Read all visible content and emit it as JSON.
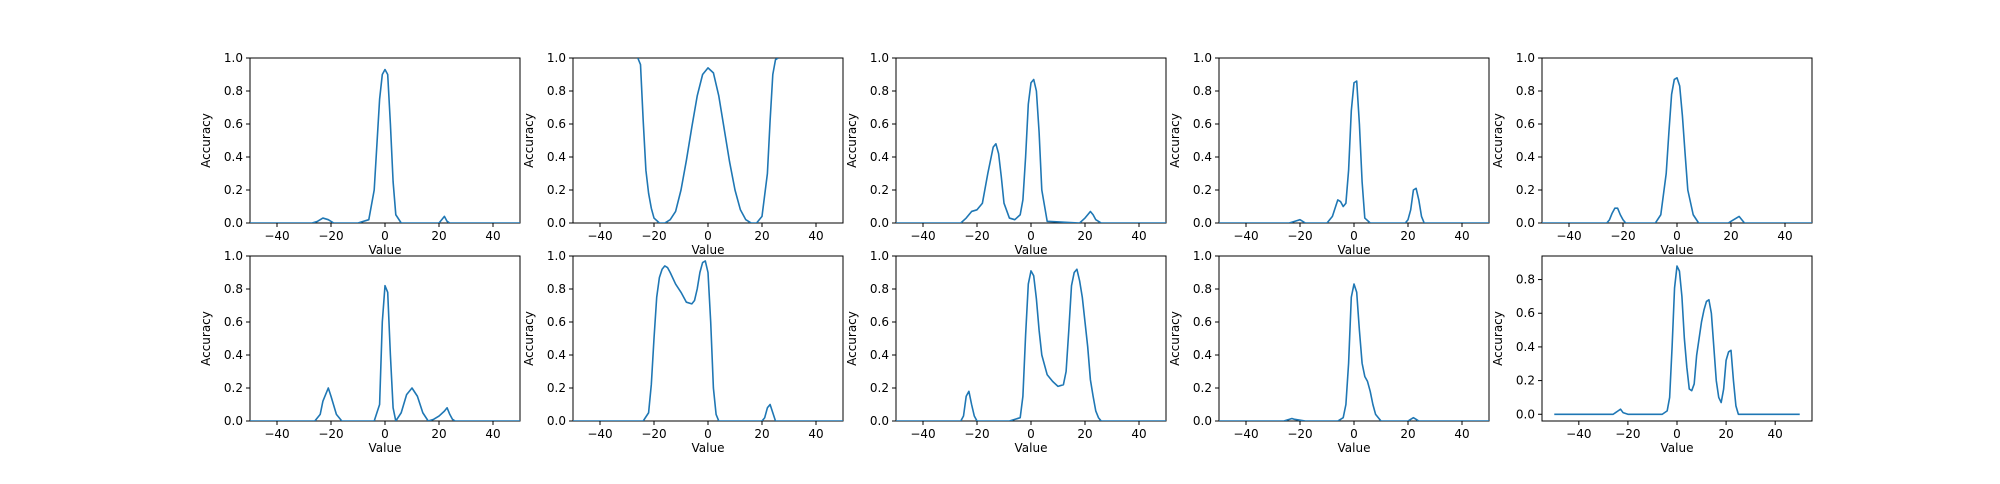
{
  "chart_data": [
    {
      "type": "line",
      "xlabel": "Value",
      "ylabel": "Accuracy",
      "xlim": [
        -50,
        50
      ],
      "ylim": [
        0,
        1.0
      ],
      "xticks": [
        -40,
        -20,
        0,
        20,
        40
      ],
      "xtick_labels": [
        "−40",
        "−20",
        "0",
        "20",
        "40"
      ],
      "yticks": [
        0,
        0.2,
        0.4,
        0.6,
        0.8,
        1.0
      ],
      "ytick_labels": [
        "0.0",
        "0.2",
        "0.4",
        "0.6",
        "0.8",
        "1.0"
      ],
      "color": "#1f77b4",
      "series": [
        {
          "x": [
            -50,
            -27,
            -25,
            -23,
            -21,
            -19,
            -10,
            -6,
            -4,
            -2,
            -1,
            0,
            1,
            2,
            3,
            4,
            6,
            20,
            21,
            22,
            23,
            24,
            50
          ],
          "y": [
            0,
            0,
            0.01,
            0.03,
            0.02,
            0,
            0,
            0.02,
            0.2,
            0.75,
            0.9,
            0.93,
            0.9,
            0.6,
            0.25,
            0.05,
            0,
            0,
            0.02,
            0.04,
            0.01,
            0,
            0
          ]
        }
      ]
    },
    {
      "type": "line",
      "xlabel": "Value",
      "ylabel": "Accuracy",
      "xlim": [
        -50,
        50
      ],
      "ylim": [
        0,
        1.0
      ],
      "xticks": [
        -40,
        -20,
        0,
        20,
        40
      ],
      "xtick_labels": [
        "−40",
        "−20",
        "0",
        "20",
        "40"
      ],
      "yticks": [
        0,
        0.2,
        0.4,
        0.6,
        0.8,
        1.0
      ],
      "ytick_labels": [
        "0.0",
        "0.2",
        "0.4",
        "0.6",
        "0.8",
        "1.0"
      ],
      "color": "#1f77b4",
      "series": [
        {
          "x": [
            -26,
            -25,
            -24,
            -23,
            -22,
            -21,
            -20,
            -18,
            -16,
            -14,
            -12,
            -10,
            -8,
            -6,
            -4,
            -2,
            0,
            2,
            4,
            6,
            8,
            10,
            12,
            14,
            16,
            18,
            20,
            22,
            23,
            24,
            25,
            26
          ],
          "y": [
            1.0,
            0.96,
            0.62,
            0.32,
            0.18,
            0.09,
            0.03,
            0.0,
            0.0,
            0.02,
            0.07,
            0.2,
            0.38,
            0.58,
            0.77,
            0.9,
            0.94,
            0.91,
            0.77,
            0.57,
            0.37,
            0.2,
            0.08,
            0.02,
            0.0,
            0.0,
            0.04,
            0.3,
            0.62,
            0.9,
            0.99,
            1.0
          ]
        }
      ]
    },
    {
      "type": "line",
      "xlabel": "Value",
      "ylabel": "Accuracy",
      "xlim": [
        -50,
        50
      ],
      "ylim": [
        0,
        1.0
      ],
      "xticks": [
        -40,
        -20,
        0,
        20,
        40
      ],
      "xtick_labels": [
        "−40",
        "−20",
        "0",
        "20",
        "40"
      ],
      "yticks": [
        0,
        0.2,
        0.4,
        0.6,
        0.8,
        1.0
      ],
      "ytick_labels": [
        "0.0",
        "0.2",
        "0.4",
        "0.6",
        "0.8",
        "1.0"
      ],
      "color": "#1f77b4",
      "series": [
        {
          "x": [
            -50,
            -26,
            -24,
            -22,
            -20,
            -18,
            -16,
            -14,
            -13,
            -12,
            -11,
            -10,
            -8,
            -6,
            -4,
            -3,
            -2,
            -1,
            0,
            1,
            2,
            3,
            4,
            6,
            18,
            20,
            22,
            23,
            24,
            26,
            50
          ],
          "y": [
            0,
            0,
            0.03,
            0.07,
            0.08,
            0.12,
            0.3,
            0.46,
            0.48,
            0.42,
            0.28,
            0.12,
            0.03,
            0.02,
            0.05,
            0.14,
            0.4,
            0.72,
            0.85,
            0.87,
            0.8,
            0.55,
            0.2,
            0.01,
            0,
            0.03,
            0.07,
            0.05,
            0.02,
            0,
            0
          ]
        }
      ]
    },
    {
      "type": "line",
      "xlabel": "Value",
      "ylabel": "Accuracy",
      "xlim": [
        -50,
        50
      ],
      "ylim": [
        0,
        1.0
      ],
      "xticks": [
        -40,
        -20,
        0,
        20,
        40
      ],
      "xtick_labels": [
        "−40",
        "−20",
        "0",
        "20",
        "40"
      ],
      "yticks": [
        0,
        0.2,
        0.4,
        0.6,
        0.8,
        1.0
      ],
      "ytick_labels": [
        "0.0",
        "0.2",
        "0.4",
        "0.6",
        "0.8",
        "1.0"
      ],
      "color": "#1f77b4",
      "series": [
        {
          "x": [
            -50,
            -24,
            -22,
            -20,
            -18,
            -10,
            -8,
            -6,
            -5,
            -4,
            -3,
            -2,
            -1,
            0,
            1,
            2,
            3,
            4,
            6,
            19,
            20,
            21,
            22,
            23,
            24,
            25,
            26,
            50
          ],
          "y": [
            0,
            0,
            0.01,
            0.02,
            0,
            0,
            0.04,
            0.14,
            0.13,
            0.1,
            0.12,
            0.32,
            0.68,
            0.85,
            0.86,
            0.6,
            0.25,
            0.03,
            0,
            0,
            0.02,
            0.08,
            0.2,
            0.21,
            0.14,
            0.04,
            0,
            0
          ]
        }
      ]
    },
    {
      "type": "line",
      "xlabel": "Value",
      "ylabel": "Accuracy",
      "xlim": [
        -50,
        50
      ],
      "ylim": [
        0,
        1.0
      ],
      "xticks": [
        -40,
        -20,
        0,
        20,
        40
      ],
      "xtick_labels": [
        "−40",
        "−20",
        "0",
        "20",
        "40"
      ],
      "yticks": [
        0,
        0.2,
        0.4,
        0.6,
        0.8,
        1.0
      ],
      "ytick_labels": [
        "0.0",
        "0.2",
        "0.4",
        "0.6",
        "0.8",
        "1.0"
      ],
      "color": "#1f77b4",
      "series": [
        {
          "x": [
            -50,
            -26,
            -25,
            -24,
            -23,
            -22,
            -21,
            -20,
            -19,
            -8,
            -6,
            -4,
            -3,
            -2,
            -1,
            0,
            1,
            2,
            3,
            4,
            6,
            8,
            19,
            20,
            21,
            22,
            23,
            24,
            25,
            50
          ],
          "y": [
            0,
            0,
            0.02,
            0.06,
            0.09,
            0.09,
            0.05,
            0.02,
            0,
            0,
            0.05,
            0.3,
            0.55,
            0.78,
            0.87,
            0.88,
            0.83,
            0.65,
            0.42,
            0.2,
            0.05,
            0,
            0,
            0.01,
            0.02,
            0.03,
            0.04,
            0.02,
            0,
            0
          ]
        }
      ]
    },
    {
      "type": "line",
      "xlabel": "Value",
      "ylabel": "Accuracy",
      "xlim": [
        -50,
        50
      ],
      "ylim": [
        0,
        1.0
      ],
      "xticks": [
        -40,
        -20,
        0,
        20,
        40
      ],
      "xtick_labels": [
        "−40",
        "−20",
        "0",
        "20",
        "40"
      ],
      "yticks": [
        0,
        0.2,
        0.4,
        0.6,
        0.8,
        1.0
      ],
      "ytick_labels": [
        "0.0",
        "0.2",
        "0.4",
        "0.6",
        "0.8",
        "1.0"
      ],
      "color": "#1f77b4",
      "series": [
        {
          "x": [
            -50,
            -26,
            -24,
            -23,
            -22,
            -21,
            -20,
            -18,
            -16,
            -4,
            -2,
            -1,
            0,
            1,
            2,
            3,
            4,
            6,
            8,
            10,
            12,
            14,
            16,
            18,
            20,
            22,
            23,
            24,
            25,
            26,
            50
          ],
          "y": [
            0,
            0,
            0.04,
            0.12,
            0.16,
            0.2,
            0.15,
            0.04,
            0,
            0,
            0.1,
            0.6,
            0.82,
            0.78,
            0.4,
            0.08,
            0,
            0.05,
            0.16,
            0.2,
            0.15,
            0.05,
            0,
            0.01,
            0.03,
            0.06,
            0.08,
            0.04,
            0.01,
            0,
            0
          ]
        }
      ]
    },
    {
      "type": "line",
      "xlabel": "Value",
      "ylabel": "Accuracy",
      "xlim": [
        -50,
        50
      ],
      "ylim": [
        0,
        1.0
      ],
      "xticks": [
        -40,
        -20,
        0,
        20,
        40
      ],
      "xtick_labels": [
        "−40",
        "−20",
        "0",
        "20",
        "40"
      ],
      "yticks": [
        0,
        0.2,
        0.4,
        0.6,
        0.8,
        1.0
      ],
      "ytick_labels": [
        "0.0",
        "0.2",
        "0.4",
        "0.6",
        "0.8",
        "1.0"
      ],
      "color": "#1f77b4",
      "series": [
        {
          "x": [
            -50,
            -24,
            -22,
            -21,
            -20,
            -19,
            -18,
            -17,
            -16,
            -15,
            -14,
            -12,
            -10,
            -8,
            -6,
            -5,
            -4,
            -3,
            -2,
            -1,
            0,
            1,
            2,
            3,
            4,
            5,
            6,
            20,
            21,
            22,
            23,
            24,
            25,
            50
          ],
          "y": [
            0,
            0,
            0.05,
            0.22,
            0.5,
            0.75,
            0.87,
            0.92,
            0.94,
            0.93,
            0.9,
            0.83,
            0.78,
            0.72,
            0.71,
            0.73,
            0.8,
            0.9,
            0.96,
            0.97,
            0.9,
            0.6,
            0.2,
            0.04,
            0,
            0,
            0,
            0,
            0.02,
            0.08,
            0.1,
            0.05,
            0,
            0
          ]
        }
      ]
    },
    {
      "type": "line",
      "xlabel": "Value",
      "ylabel": "Accuracy",
      "xlim": [
        -50,
        50
      ],
      "ylim": [
        0,
        1.0
      ],
      "xticks": [
        -40,
        -20,
        0,
        20,
        40
      ],
      "xtick_labels": [
        "−40",
        "−20",
        "0",
        "20",
        "40"
      ],
      "yticks": [
        0,
        0.2,
        0.4,
        0.6,
        0.8,
        1.0
      ],
      "ytick_labels": [
        "0.0",
        "0.2",
        "0.4",
        "0.6",
        "0.8",
        "1.0"
      ],
      "color": "#1f77b4",
      "series": [
        {
          "x": [
            -50,
            -26,
            -25,
            -24,
            -23,
            -22,
            -21,
            -20,
            -8,
            -4,
            -3,
            -2,
            -1,
            0,
            1,
            2,
            3,
            4,
            6,
            8,
            10,
            12,
            13,
            14,
            15,
            16,
            17,
            18,
            19,
            20,
            21,
            22,
            23,
            24,
            25,
            26,
            50
          ],
          "y": [
            0,
            0,
            0.03,
            0.15,
            0.18,
            0.1,
            0.03,
            0,
            0,
            0.02,
            0.15,
            0.52,
            0.83,
            0.91,
            0.88,
            0.74,
            0.55,
            0.4,
            0.28,
            0.24,
            0.21,
            0.22,
            0.3,
            0.55,
            0.82,
            0.9,
            0.92,
            0.85,
            0.75,
            0.6,
            0.45,
            0.25,
            0.15,
            0.06,
            0.02,
            0,
            0
          ]
        }
      ]
    },
    {
      "type": "line",
      "xlabel": "Value",
      "ylabel": "Accuracy",
      "xlim": [
        -50,
        50
      ],
      "ylim": [
        0,
        1.0
      ],
      "xticks": [
        -40,
        -20,
        0,
        20,
        40
      ],
      "xtick_labels": [
        "−40",
        "−20",
        "0",
        "20",
        "40"
      ],
      "yticks": [
        0,
        0.2,
        0.4,
        0.6,
        0.8,
        1.0
      ],
      "ytick_labels": [
        "0.0",
        "0.2",
        "0.4",
        "0.6",
        "0.8",
        "1.0"
      ],
      "color": "#1f77b4",
      "series": [
        {
          "x": [
            -50,
            -26,
            -24,
            -23,
            -22,
            -20,
            -18,
            -6,
            -4,
            -3,
            -2,
            -1,
            0,
            1,
            2,
            3,
            4,
            5,
            6,
            7,
            8,
            10,
            20,
            21,
            22,
            23,
            24,
            50
          ],
          "y": [
            0,
            0,
            0.01,
            0.015,
            0.01,
            0.005,
            0,
            0,
            0.02,
            0.1,
            0.35,
            0.75,
            0.83,
            0.78,
            0.55,
            0.35,
            0.27,
            0.24,
            0.18,
            0.1,
            0.04,
            0,
            0,
            0.01,
            0.02,
            0.01,
            0,
            0
          ]
        }
      ]
    },
    {
      "type": "line",
      "xlabel": "Value",
      "ylabel": "Accuracy",
      "xlim": [
        -55,
        55
      ],
      "ylim": [
        -0.04,
        0.94
      ],
      "xticks": [
        -40,
        -20,
        0,
        20,
        40
      ],
      "xtick_labels": [
        "−40",
        "−20",
        "0",
        "20",
        "40"
      ],
      "yticks": [
        0,
        0.2,
        0.4,
        0.6,
        0.8
      ],
      "ytick_labels": [
        "0.0",
        "0.2",
        "0.4",
        "0.6",
        "0.8"
      ],
      "color": "#1f77b4",
      "series": [
        {
          "x": [
            -50,
            -26,
            -25,
            -24,
            -23,
            -22,
            -20,
            -6,
            -4,
            -3,
            -2,
            -1,
            0,
            1,
            2,
            3,
            4,
            5,
            6,
            7,
            8,
            10,
            11,
            12,
            13,
            14,
            15,
            16,
            17,
            18,
            19,
            20,
            21,
            22,
            23,
            24,
            25,
            26,
            28,
            50
          ],
          "y": [
            0,
            0,
            0.01,
            0.02,
            0.03,
            0.01,
            0,
            0,
            0.02,
            0.1,
            0.4,
            0.75,
            0.88,
            0.85,
            0.7,
            0.45,
            0.28,
            0.15,
            0.14,
            0.18,
            0.35,
            0.55,
            0.62,
            0.67,
            0.68,
            0.6,
            0.4,
            0.2,
            0.1,
            0.07,
            0.15,
            0.32,
            0.37,
            0.38,
            0.2,
            0.05,
            0,
            0,
            0,
            0
          ]
        }
      ]
    }
  ]
}
